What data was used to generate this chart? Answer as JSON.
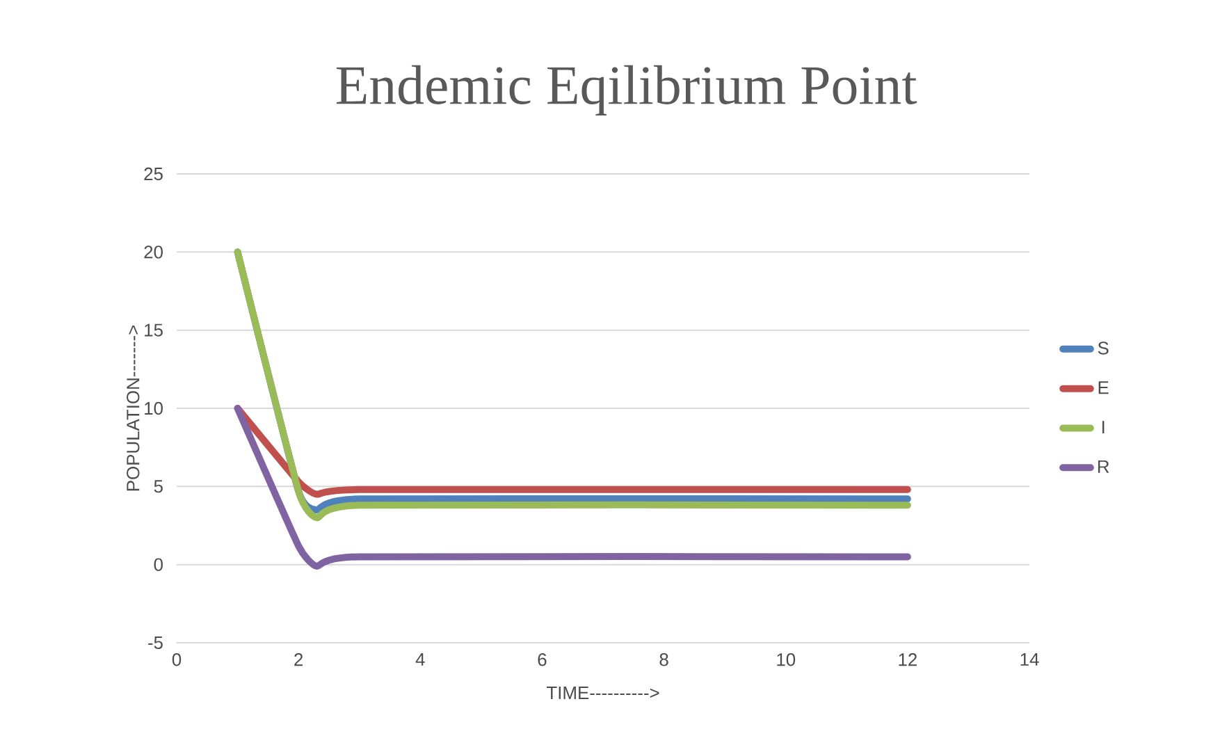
{
  "chart_data": {
    "type": "line",
    "title": "Endemic Eqilibrium Point",
    "xlabel": "TIME---------->",
    "ylabel": "POPULATION------->",
    "x": [
      1,
      2,
      2.3,
      3,
      12
    ],
    "xlim": [
      0,
      14
    ],
    "xticks": [
      0,
      2,
      4,
      6,
      8,
      10,
      12,
      14
    ],
    "ylim": [
      -5,
      25
    ],
    "yticks": [
      -5,
      0,
      5,
      10,
      15,
      20,
      25
    ],
    "grid": "y",
    "legend": "right",
    "line_style": "solid",
    "series": [
      {
        "name": "S",
        "color": "#4f81bd",
        "values": [
          20,
          4.7,
          3.5,
          4.2,
          4.2
        ]
      },
      {
        "name": "E",
        "color": "#c0504d",
        "values": [
          10,
          5.3,
          4.5,
          4.8,
          4.8
        ]
      },
      {
        "name": "I",
        "color": "#9bbb59",
        "values": [
          20,
          4.7,
          3.0,
          3.8,
          3.8
        ]
      },
      {
        "name": "R",
        "color": "#8064a2",
        "values": [
          10,
          1.2,
          -0.1,
          0.5,
          0.5
        ]
      }
    ]
  }
}
